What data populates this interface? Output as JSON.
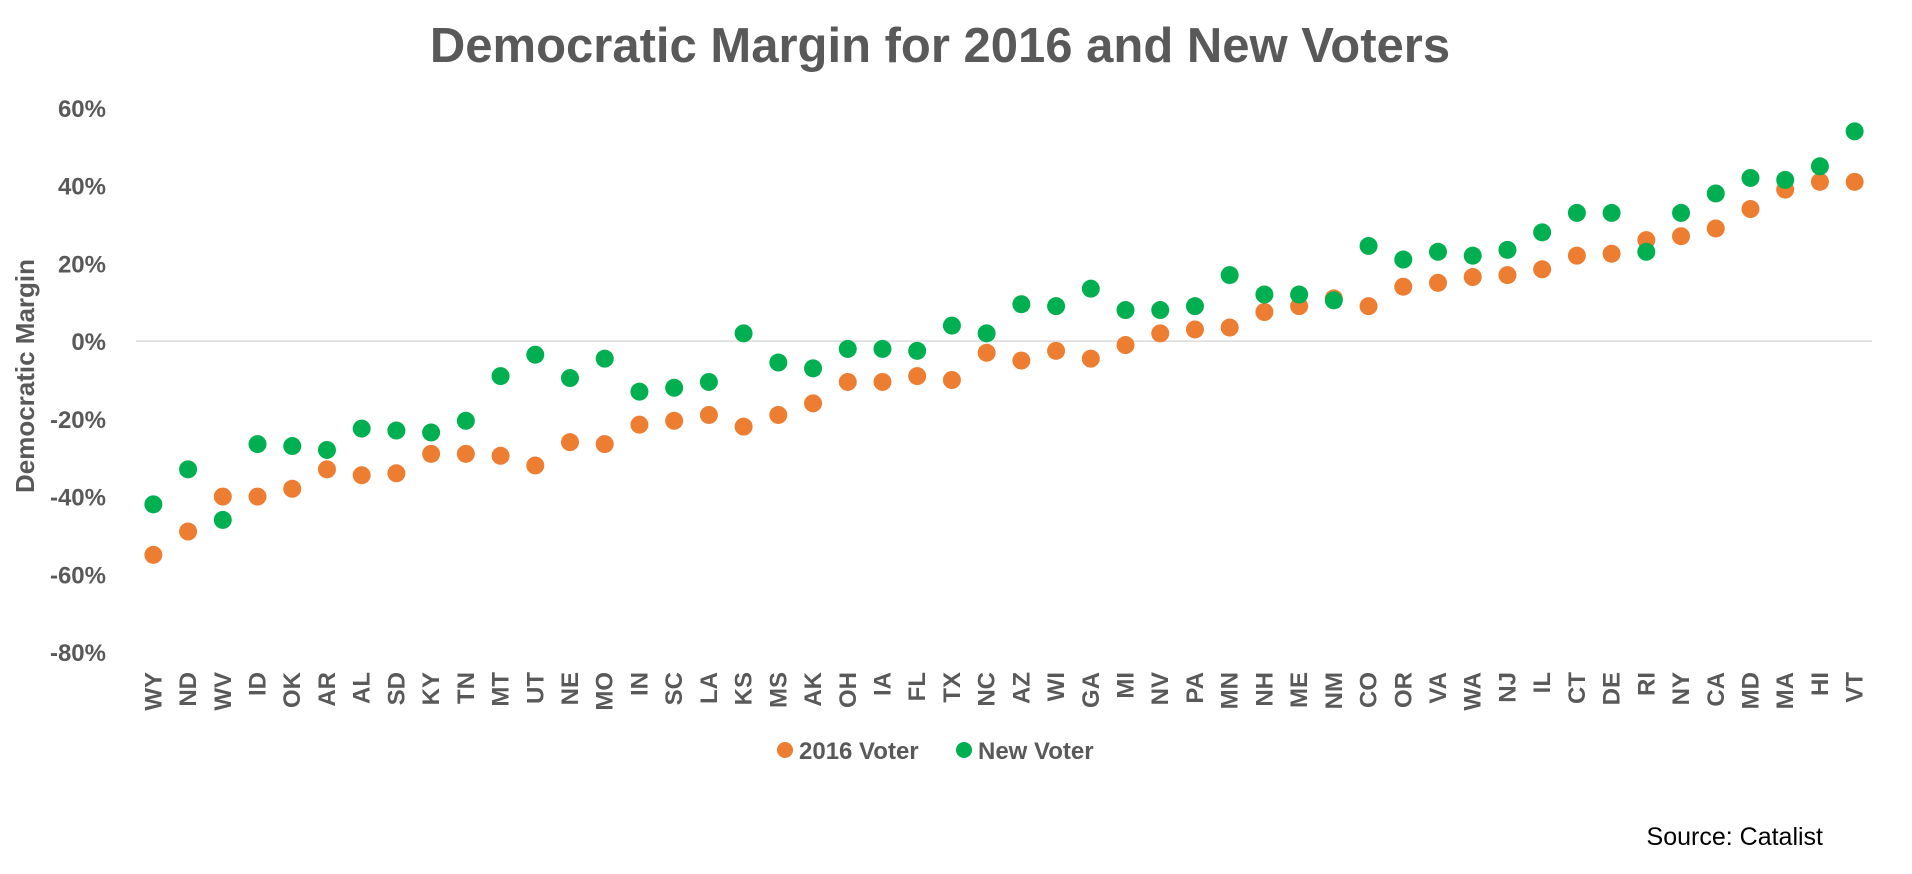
{
  "chart_data": {
    "type": "scatter",
    "title": "Democratic Margin for 2016 and New Voters",
    "xlabel": "",
    "ylabel": "Democratic Margin",
    "ylim": [
      -80,
      60
    ],
    "yticks": [
      60,
      40,
      20,
      0,
      -20,
      -40,
      -60,
      -80
    ],
    "y_unit": "%",
    "grid": false,
    "zero_line": true,
    "legend_position": "bottom",
    "source": "Source: Catalist",
    "categories": [
      "WY",
      "ND",
      "WV",
      "ID",
      "OK",
      "AR",
      "AL",
      "SD",
      "KY",
      "TN",
      "MT",
      "UT",
      "NE",
      "MO",
      "IN",
      "SC",
      "LA",
      "KS",
      "MS",
      "AK",
      "OH",
      "IA",
      "FL",
      "TX",
      "NC",
      "AZ",
      "WI",
      "GA",
      "MI",
      "NV",
      "PA",
      "MN",
      "NH",
      "ME",
      "NM",
      "CO",
      "OR",
      "VA",
      "WA",
      "NJ",
      "IL",
      "CT",
      "DE",
      "RI",
      "NY",
      "CA",
      "MD",
      "MA",
      "HI",
      "VT"
    ],
    "series": [
      {
        "name": "2016 Voter",
        "color": "#ED7D31",
        "values": [
          -55,
          -49,
          -40,
          -40,
          -38,
          -33,
          -34.5,
          -34,
          -29,
          -29,
          -29.5,
          -32,
          -26,
          -26.5,
          -21.5,
          -20.5,
          -19,
          -22,
          -19,
          -16,
          -10.5,
          -10.5,
          -9,
          -10,
          -3,
          -5,
          -2.5,
          -4.5,
          -1,
          2,
          3,
          3.5,
          7.5,
          9,
          11,
          9,
          14,
          15,
          16.5,
          17,
          18.5,
          22,
          22.5,
          26,
          27,
          29,
          34,
          39,
          41,
          41
        ]
      },
      {
        "name": "New Voter",
        "color": "#00B050",
        "values": [
          -42,
          -33,
          -46,
          -26.5,
          -27,
          -28,
          -22.5,
          -23,
          -23.5,
          -20.5,
          -9,
          -3.5,
          -9.5,
          -4.5,
          -13,
          -12,
          -10.5,
          2,
          -5.5,
          -7,
          -2,
          -2,
          -2.5,
          4,
          2,
          9.5,
          9,
          13.5,
          8,
          8,
          9,
          17,
          12,
          12,
          10.5,
          24.5,
          21,
          23,
          22,
          23.5,
          28,
          33,
          33,
          23,
          33,
          38,
          42,
          41.5,
          45,
          54
        ]
      }
    ]
  }
}
